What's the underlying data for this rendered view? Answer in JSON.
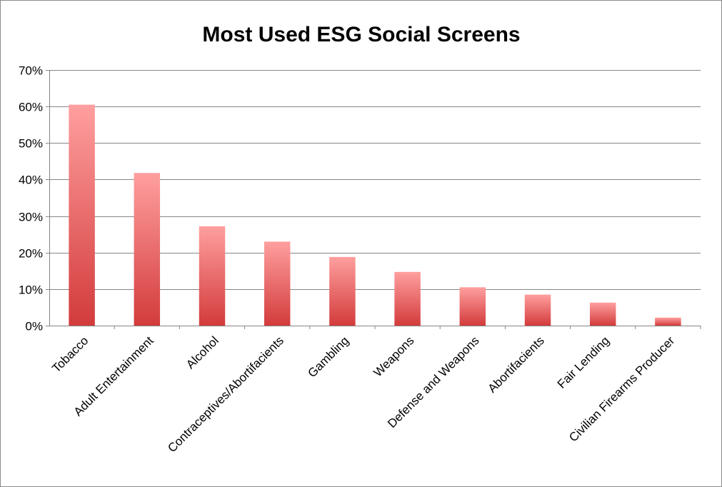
{
  "chart_data": {
    "type": "bar",
    "title": "Most Used ESG Social Screens",
    "xlabel": "",
    "ylabel": "",
    "ylim": [
      0,
      0.7
    ],
    "yticks": [
      0,
      0.1,
      0.2,
      0.3,
      0.4,
      0.5,
      0.6,
      0.7
    ],
    "ytick_labels": [
      "0%",
      "10%",
      "20%",
      "30%",
      "40%",
      "50%",
      "60%",
      "70%"
    ],
    "grid": true,
    "legend": "none",
    "categories": [
      "Tobacco",
      "Adult Entertainment",
      "Alcohol",
      "Contraceptives/Abortifacients",
      "Gambling",
      "Weapons",
      "Defense and Weapons",
      "Abortifacients",
      "Fair Lending",
      "Civilian Firearms Producer"
    ],
    "values": [
      0.605,
      0.418,
      0.272,
      0.23,
      0.188,
      0.147,
      0.105,
      0.085,
      0.063,
      0.022
    ],
    "colors": {
      "bar_top": "#ff9f9f",
      "bar_bottom": "#d33b3b",
      "gridline": "#868686",
      "axis": "#868686",
      "frame": "#8c8c8c"
    }
  }
}
